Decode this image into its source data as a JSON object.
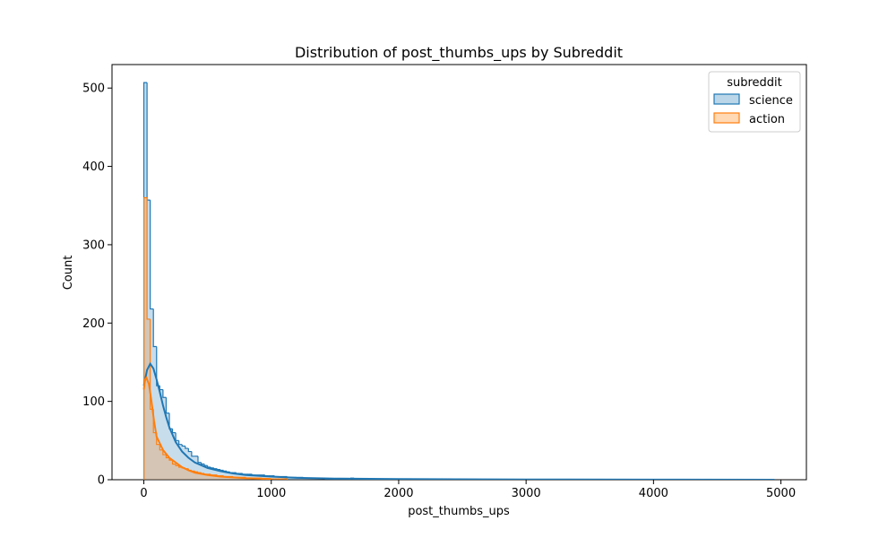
{
  "chart_data": {
    "type": "histogram",
    "title": "Distribution of post_thumbs_ups by Subreddit",
    "xlabel": "post_thumbs_ups",
    "ylabel": "Count",
    "xlim": [
      -250,
      5200
    ],
    "ylim": [
      0,
      530
    ],
    "xticks": [
      0,
      1000,
      2000,
      3000,
      4000,
      5000
    ],
    "yticks": [
      0,
      100,
      200,
      300,
      400,
      500
    ],
    "grid": false,
    "legend": {
      "title": "subreddit",
      "placement": "top-right"
    },
    "bin_width": 25,
    "series": [
      {
        "name": "science",
        "color": "#1f77b4",
        "bin_start": 0,
        "counts": [
          507,
          357,
          218,
          170,
          120,
          115,
          105,
          85,
          65,
          60,
          50,
          45,
          43,
          40,
          36,
          30,
          30,
          22,
          20,
          18,
          16,
          15,
          14,
          13,
          12,
          11,
          10,
          9,
          9,
          8,
          8,
          7,
          7,
          7,
          6,
          6,
          6,
          6,
          5,
          5,
          5,
          4,
          4,
          4,
          4,
          3,
          3,
          3,
          3,
          3,
          2,
          2,
          2,
          2,
          2,
          2,
          2,
          1,
          1,
          1,
          1,
          1,
          1,
          1,
          1,
          2,
          1,
          1,
          1,
          1,
          1,
          0,
          1,
          1,
          1
        ],
        "tail_to": 4950,
        "kde": [
          [
            0,
            120
          ],
          [
            25,
            140
          ],
          [
            50,
            148
          ],
          [
            75,
            142
          ],
          [
            100,
            128
          ],
          [
            125,
            112
          ],
          [
            150,
            95
          ],
          [
            175,
            80
          ],
          [
            200,
            67
          ],
          [
            250,
            48
          ],
          [
            300,
            36
          ],
          [
            350,
            28
          ],
          [
            400,
            22
          ],
          [
            500,
            15
          ],
          [
            600,
            11
          ],
          [
            700,
            8
          ],
          [
            800,
            6
          ],
          [
            1000,
            4
          ],
          [
            1200,
            2.5
          ],
          [
            1500,
            1.5
          ],
          [
            2000,
            0.8
          ],
          [
            3000,
            0.3
          ],
          [
            4000,
            0.1
          ],
          [
            4950,
            0
          ]
        ]
      },
      {
        "name": "action",
        "color": "#ff7f0e",
        "bin_start": 0,
        "counts": [
          360,
          205,
          90,
          60,
          45,
          38,
          32,
          28,
          25,
          20,
          18,
          16,
          15,
          14,
          12,
          11,
          10,
          9,
          8,
          7,
          7,
          6,
          6,
          5,
          5,
          4,
          4,
          4,
          3,
          3,
          3,
          3,
          2,
          2,
          2,
          2,
          2,
          1,
          1,
          1,
          1,
          1,
          1,
          1,
          1
        ],
        "tail_to": 1100,
        "kde": [
          [
            0,
            115
          ],
          [
            10,
            128
          ],
          [
            20,
            130
          ],
          [
            40,
            122
          ],
          [
            60,
            100
          ],
          [
            80,
            75
          ],
          [
            100,
            55
          ],
          [
            150,
            38
          ],
          [
            200,
            28
          ],
          [
            250,
            22
          ],
          [
            300,
            16
          ],
          [
            350,
            12
          ],
          [
            400,
            9
          ],
          [
            500,
            6
          ],
          [
            600,
            4
          ],
          [
            800,
            2
          ],
          [
            1000,
            1
          ]
        ]
      }
    ]
  }
}
